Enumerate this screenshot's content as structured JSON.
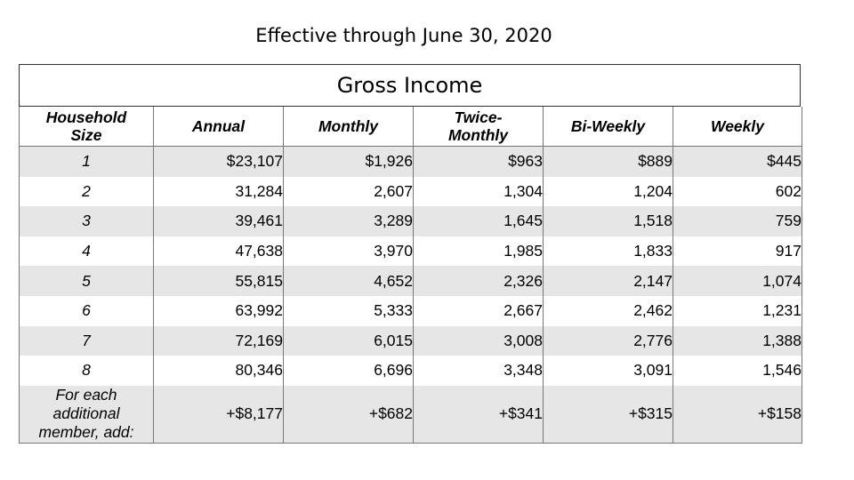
{
  "heading": "Effective through June 30, 2020",
  "table_title": "Gross Income",
  "columns": {
    "size_line1": "Household",
    "size_line2": "Size",
    "annual": "Annual",
    "monthly": "Monthly",
    "twice_line1": "Twice-",
    "twice_line2": "Monthly",
    "biweekly": "Bi-Weekly",
    "weekly": "Weekly"
  },
  "rows": [
    {
      "size": "1",
      "annual": "$23,107",
      "monthly": "$1,926",
      "twice": "$963",
      "biweekly": "$889",
      "weekly": "$445"
    },
    {
      "size": "2",
      "annual": "31,284",
      "monthly": "2,607",
      "twice": "1,304",
      "biweekly": "1,204",
      "weekly": "602"
    },
    {
      "size": "3",
      "annual": "39,461",
      "monthly": "3,289",
      "twice": "1,645",
      "biweekly": "1,518",
      "weekly": "759"
    },
    {
      "size": "4",
      "annual": "47,638",
      "monthly": "3,970",
      "twice": "1,985",
      "biweekly": "1,833",
      "weekly": "917"
    },
    {
      "size": "5",
      "annual": "55,815",
      "monthly": "4,652",
      "twice": "2,326",
      "biweekly": "2,147",
      "weekly": "1,074"
    },
    {
      "size": "6",
      "annual": "63,992",
      "monthly": "5,333",
      "twice": "2,667",
      "biweekly": "2,462",
      "weekly": "1,231"
    },
    {
      "size": "7",
      "annual": "72,169",
      "monthly": "6,015",
      "twice": "3,008",
      "biweekly": "2,776",
      "weekly": "1,388"
    },
    {
      "size": "8",
      "annual": "80,346",
      "monthly": "6,696",
      "twice": "3,348",
      "biweekly": "3,091",
      "weekly": "1,546"
    }
  ],
  "additional": {
    "label_line1": "For each",
    "label_line2": "additional",
    "label_line3": "member, add:",
    "annual": "+$8,177",
    "monthly": "+$682",
    "twice": "+$341",
    "biweekly": "+$315",
    "weekly": "+$158"
  }
}
